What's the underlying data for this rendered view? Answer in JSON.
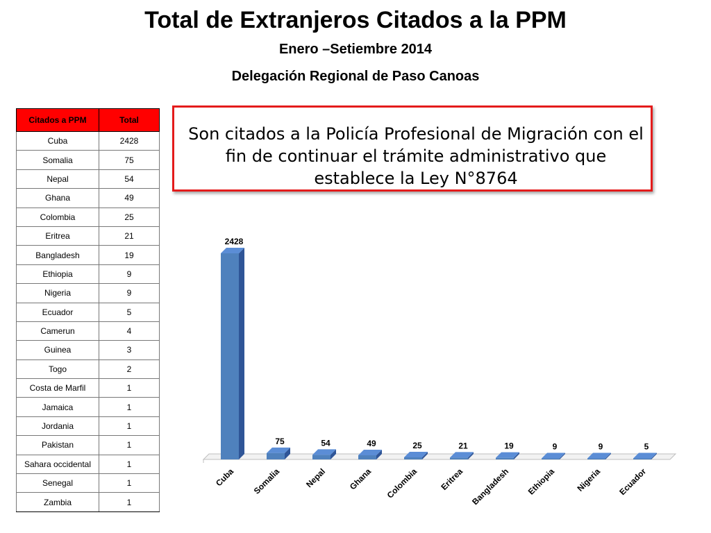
{
  "header": {
    "title": "Total de Extranjeros Citados a la PPM",
    "subtitle": "Enero –Setiembre 2014",
    "subtitle2": "Delegación Regional de Paso Canoas"
  },
  "table": {
    "headers": [
      "Citados a PPM",
      "Total"
    ],
    "rows": [
      [
        "Cuba",
        "2428"
      ],
      [
        "Somalia",
        "75"
      ],
      [
        "Nepal",
        "54"
      ],
      [
        "Ghana",
        "49"
      ],
      [
        "Colombia",
        "25"
      ],
      [
        "Eritrea",
        "21"
      ],
      [
        "Bangladesh",
        "19"
      ],
      [
        "Ethiopia",
        "9"
      ],
      [
        "Nigeria",
        "9"
      ],
      [
        "Ecuador",
        "5"
      ],
      [
        "Camerun",
        "4"
      ],
      [
        "Guinea",
        "3"
      ],
      [
        "Togo",
        "2"
      ],
      [
        "Costa de Marfil",
        "1"
      ],
      [
        "Jamaica",
        "1"
      ],
      [
        "Jordania",
        "1"
      ],
      [
        "Pakistan",
        "1"
      ],
      [
        "Sahara occidental",
        "1"
      ],
      [
        "Senegal",
        "1"
      ],
      [
        "Zambia",
        "1"
      ]
    ],
    "header_color": "#ff0000"
  },
  "note": {
    "text": "Son citados a la Policía Profesional de Migración con el fin de continuar el trámite administrativo que establece la Ley N°8764",
    "border_color": "#e41b1b"
  },
  "chart_data": {
    "type": "bar",
    "style": "3d-column",
    "categories": [
      "Cuba",
      "Somalia",
      "Nepal",
      "Ghana",
      "Colombia",
      "Eritrea",
      "Bangladesh",
      "Ethiopia",
      "Nigeria",
      "Ecuador"
    ],
    "values": [
      2428,
      75,
      54,
      49,
      25,
      21,
      19,
      9,
      9,
      5
    ],
    "ylim": [
      0,
      2428
    ],
    "grid": false,
    "legend": "none",
    "data_labels": true,
    "bar_color": "#4f81bd"
  }
}
